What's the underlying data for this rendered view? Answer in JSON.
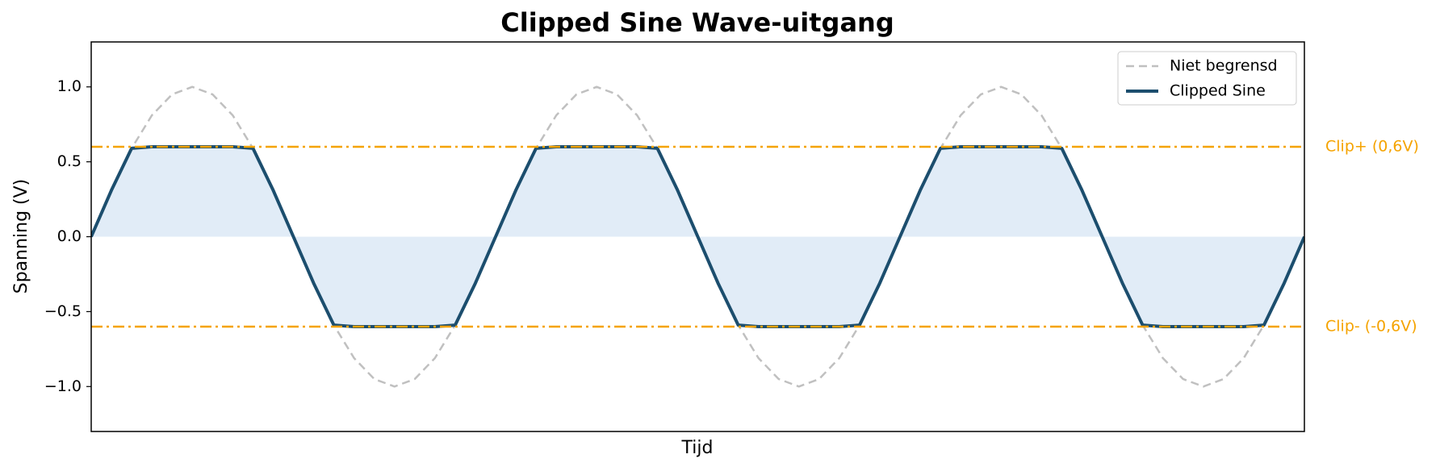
{
  "chart_data": {
    "type": "line",
    "title": "Clipped Sine Wave-uitgang",
    "xlabel": "Tijd",
    "ylabel": "Spanning (V)",
    "x": [
      0,
      0.05,
      0.1,
      0.15,
      0.2,
      0.25,
      0.3,
      0.35,
      0.4,
      0.45,
      0.5,
      0.55,
      0.6,
      0.65,
      0.7,
      0.75,
      0.8,
      0.85,
      0.9,
      0.95,
      1,
      1.05,
      1.1,
      1.15,
      1.2,
      1.25,
      1.3,
      1.35,
      1.4,
      1.45,
      1.5,
      1.55,
      1.6,
      1.65,
      1.7,
      1.75,
      1.8,
      1.85,
      1.9,
      1.95,
      2,
      2.05,
      2.1,
      2.15,
      2.2,
      2.25,
      2.3,
      2.35,
      2.4,
      2.45,
      2.5,
      2.55,
      2.6,
      2.65,
      2.7,
      2.75,
      2.8,
      2.85,
      2.9,
      2.95,
      3
    ],
    "series": [
      {
        "name": "Niet begrensd",
        "color": "#c0c0c0",
        "dashed": true,
        "width": 2.5,
        "values": [
          0,
          0.31,
          0.59,
          0.81,
          0.95,
          1,
          0.95,
          0.81,
          0.59,
          0.31,
          0,
          -0.31,
          -0.59,
          -0.81,
          -0.95,
          -1,
          -0.95,
          -0.81,
          -0.59,
          -0.31,
          0,
          0.31,
          0.59,
          0.81,
          0.95,
          1,
          0.95,
          0.81,
          0.59,
          0.31,
          0,
          -0.31,
          -0.59,
          -0.81,
          -0.95,
          -1,
          -0.95,
          -0.81,
          -0.59,
          -0.31,
          0,
          0.31,
          0.59,
          0.81,
          0.95,
          1,
          0.95,
          0.81,
          0.59,
          0.31,
          0,
          -0.31,
          -0.59,
          -0.81,
          -0.95,
          -1,
          -0.95,
          -0.81,
          -0.59,
          -0.31,
          0
        ]
      },
      {
        "name": "Clipped Sine",
        "color": "#1c4e6e",
        "dashed": false,
        "width": 4,
        "fill_color": "#dce9f6",
        "values": [
          0,
          0.31,
          0.59,
          0.6,
          0.6,
          0.6,
          0.6,
          0.6,
          0.59,
          0.31,
          0,
          -0.31,
          -0.59,
          -0.6,
          -0.6,
          -0.6,
          -0.6,
          -0.6,
          -0.59,
          -0.31,
          0,
          0.31,
          0.59,
          0.6,
          0.6,
          0.6,
          0.6,
          0.6,
          0.59,
          0.31,
          0,
          -0.31,
          -0.59,
          -0.6,
          -0.6,
          -0.6,
          -0.6,
          -0.6,
          -0.59,
          -0.31,
          0,
          0.31,
          0.59,
          0.6,
          0.6,
          0.6,
          0.6,
          0.6,
          0.59,
          0.31,
          0,
          -0.31,
          -0.59,
          -0.6,
          -0.6,
          -0.6,
          -0.6,
          -0.6,
          -0.59,
          -0.31,
          0
        ]
      }
    ],
    "hlines": [
      {
        "value": 0.6,
        "label": "Clip+ (0,6V)",
        "color": "#f5a300"
      },
      {
        "value": -0.6,
        "label": "Clip- (-0,6V)",
        "color": "#f5a300"
      }
    ],
    "xlim": [
      0,
      3
    ],
    "ylim": [
      -1.3,
      1.3
    ],
    "yticks": [
      {
        "value": -1,
        "label": "−1.0"
      },
      {
        "value": -0.5,
        "label": "−0.5"
      },
      {
        "value": 0,
        "label": "0.0"
      },
      {
        "value": 0.5,
        "label": "0.5"
      },
      {
        "value": 1,
        "label": "1.0"
      }
    ],
    "legend": "upper right"
  }
}
